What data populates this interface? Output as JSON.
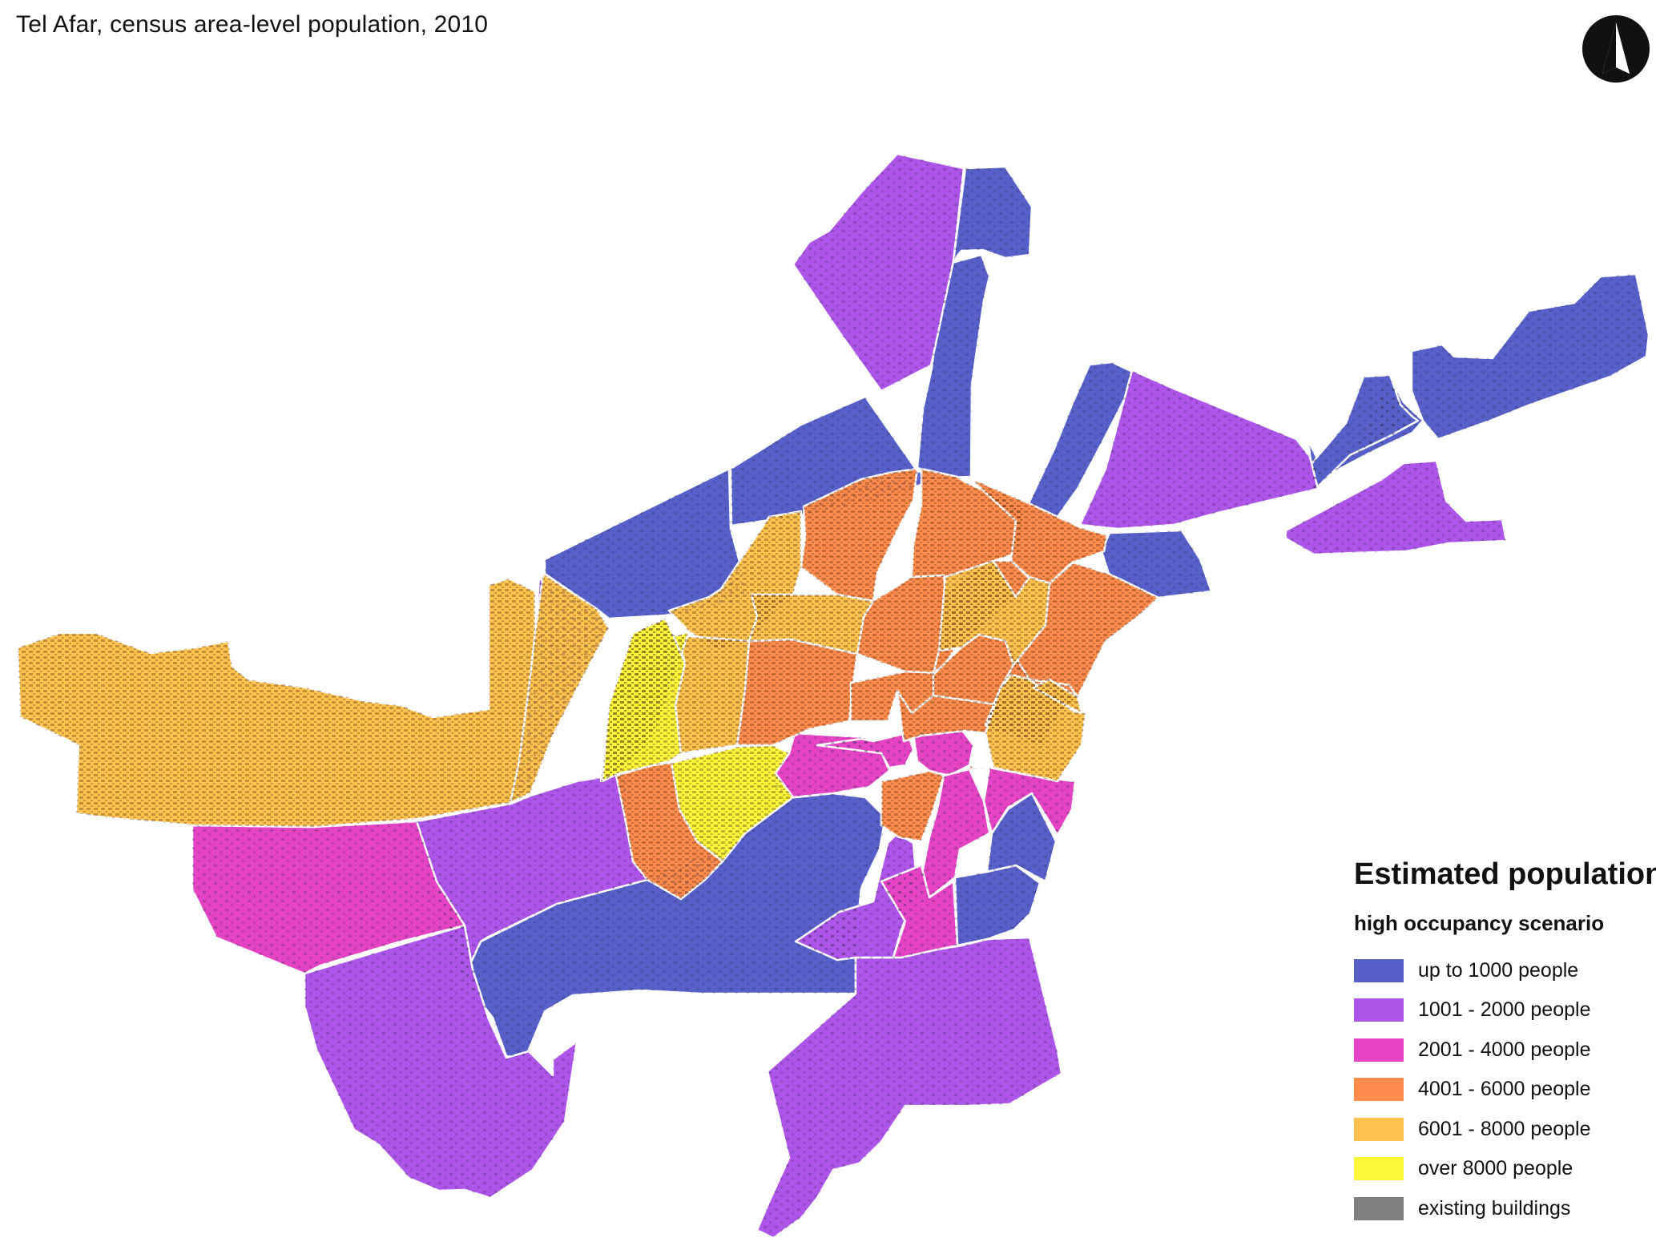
{
  "title": "Tel Afar, census area-level population, 2010",
  "legend": {
    "title": "Estimated population",
    "subtitle": "high occupancy scenario",
    "items": [
      {
        "label": "up to 1000 people",
        "color": "#5660c8"
      },
      {
        "label": "1001 - 2000 people",
        "color": "#ad55e8"
      },
      {
        "label": "2001 - 4000 people",
        "color": "#e443c3"
      },
      {
        "label": "4001 - 6000 people",
        "color": "#ff8c4d"
      },
      {
        "label": "6001 - 8000 people",
        "color": "#fdc34e"
      },
      {
        "label": "over 8000 people",
        "color": "#fbf83a"
      },
      {
        "label": "existing buildings",
        "color": "#808080"
      }
    ]
  },
  "map": {
    "north_arrow": "north-arrow-icon",
    "building_color": "#6b3f8a"
  }
}
